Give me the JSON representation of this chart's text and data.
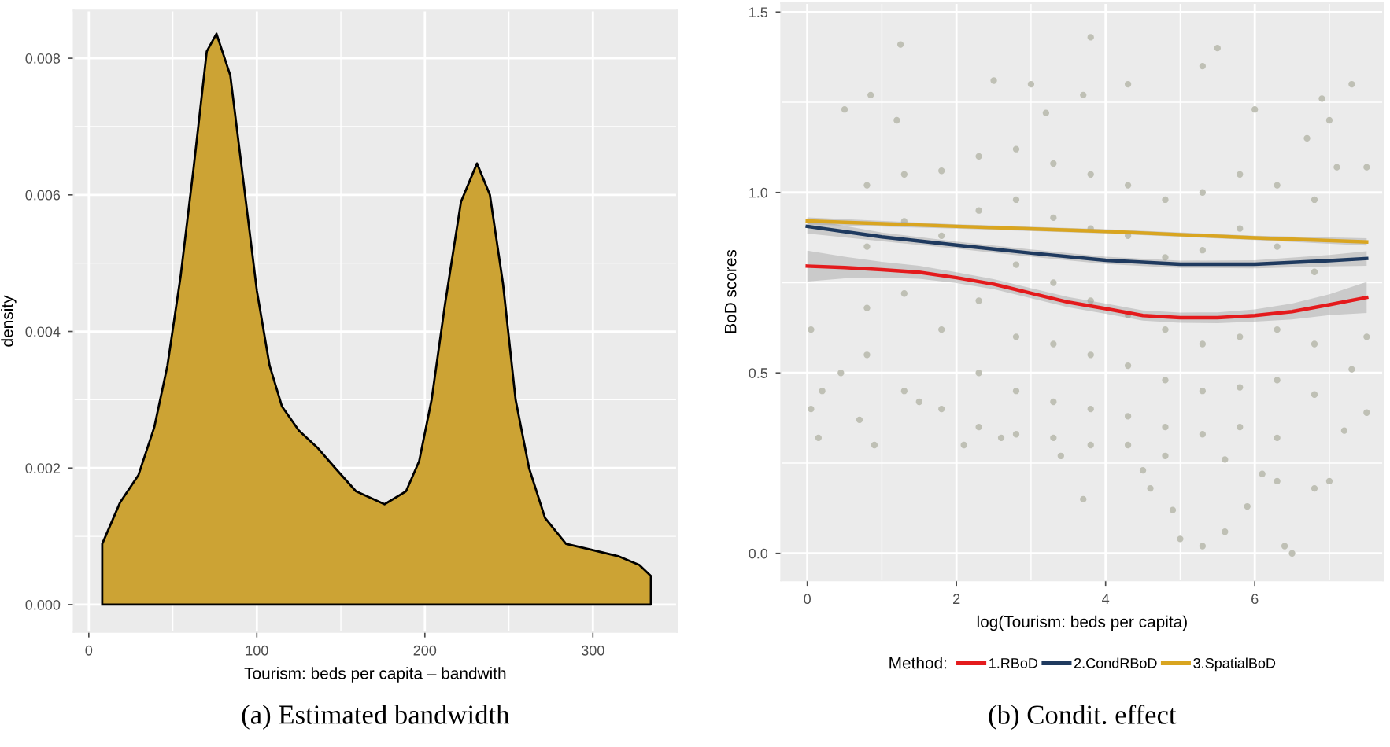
{
  "chart_data": [
    {
      "type": "area",
      "title": "(a) Estimated bandwidth",
      "xlabel": "Tourism: beds per capita – bandwith",
      "ylabel": "density",
      "xlim": [
        -9,
        350
      ],
      "ylim": [
        -0.0004,
        0.0087
      ],
      "xticks": [
        0,
        100,
        200,
        300
      ],
      "yticks": [
        {
          "value": 0,
          "label": "0.000"
        },
        {
          "value": 0.002,
          "label": "0.002"
        },
        {
          "value": 0.004,
          "label": "0.004"
        },
        {
          "value": 0.006,
          "label": "0.006"
        },
        {
          "value": 0.008,
          "label": "0.008"
        }
      ],
      "grid": true,
      "legend": false,
      "series": [
        {
          "color": "#cca334",
          "x": [
            8,
            18.7,
            29.6,
            39,
            46.8,
            54.6,
            62.4,
            70.2,
            76,
            84.2,
            92,
            100,
            107.6,
            115,
            125,
            136,
            146.6,
            159,
            176,
            188.8,
            196.6,
            204,
            212,
            221.5,
            231,
            238.7,
            246.5,
            254,
            262,
            271.5,
            284,
            299.5,
            315,
            327.6,
            334.5
          ],
          "values": [
            0.00089,
            0.0015,
            0.0019,
            0.0026,
            0.0035,
            0.0048,
            0.0064,
            0.0081,
            0.00836,
            0.00775,
            0.0062,
            0.0046,
            0.0035,
            0.0029,
            0.00255,
            0.0023,
            0.002,
            0.00166,
            0.00147,
            0.00166,
            0.0021,
            0.003,
            0.0044,
            0.0059,
            0.00646,
            0.006,
            0.0047,
            0.003,
            0.002,
            0.00127,
            0.00089,
            0.0008,
            0.00071,
            0.00058,
            0.00042
          ]
        }
      ]
    },
    {
      "type": "line",
      "title": "(b) Condit. effect",
      "xlabel": "log(Tourism: beds per capita)",
      "ylabel": "BoD scores",
      "legend_title": "Method:",
      "xlim": [
        -0.35,
        7.72
      ],
      "ylim": [
        -0.075,
        1.525
      ],
      "xticks": [
        0,
        2,
        4,
        6
      ],
      "yticks": [
        {
          "value": 0,
          "label": "0.0"
        },
        {
          "value": 0.5,
          "label": "0.5"
        },
        {
          "value": 1,
          "label": "1.0"
        },
        {
          "value": 1.5,
          "label": "1.5"
        }
      ],
      "grid": true,
      "legend": "bottom",
      "series": [
        {
          "type": "scatter",
          "color": "#bfc0b5",
          "x": [
            1.25,
            3.8,
            5.5,
            5.3,
            0.5,
            0.85,
            2.5,
            3.0,
            3.7,
            4.3,
            7.3,
            6.9,
            6.0,
            7.0,
            1.2,
            3.2,
            0.05,
            0.05,
            0.15,
            0.2,
            0.45,
            0.9,
            3.7,
            4.6,
            4.9,
            5.0,
            5.3,
            5.6,
            5.9,
            6.4,
            6.5,
            6.3,
            7.0,
            6.8,
            7.2,
            7.5,
            7.5,
            7.5,
            4.5,
            2.1,
            2.6,
            3.4,
            6.1,
            5.6,
            0.7,
            1.5,
            7.3,
            6.7,
            7.1,
            0.8,
            0.8,
            0.8,
            0.8,
            1.3,
            1.3,
            1.3,
            1.3,
            1.8,
            1.8,
            1.8,
            1.8,
            2.3,
            2.3,
            2.3,
            2.3,
            2.3,
            2.8,
            2.8,
            2.8,
            2.8,
            2.8,
            2.8,
            3.3,
            3.3,
            3.3,
            3.3,
            3.3,
            3.3,
            3.8,
            3.8,
            3.8,
            3.8,
            3.8,
            3.8,
            4.3,
            4.3,
            4.3,
            4.3,
            4.3,
            4.3,
            4.8,
            4.8,
            4.8,
            4.8,
            4.8,
            4.8,
            5.3,
            5.3,
            5.3,
            5.3,
            5.3,
            5.8,
            5.8,
            5.8,
            5.8,
            5.8,
            6.3,
            6.3,
            6.3,
            6.3,
            6.3,
            6.8,
            6.8,
            6.8,
            6.8
          ],
          "values": [
            1.41,
            1.43,
            1.4,
            1.35,
            1.23,
            1.27,
            1.31,
            1.3,
            1.27,
            1.3,
            1.3,
            1.26,
            1.23,
            1.2,
            1.2,
            1.22,
            0.62,
            0.4,
            0.32,
            0.45,
            0.5,
            0.3,
            0.15,
            0.18,
            0.12,
            0.04,
            0.02,
            0.06,
            0.13,
            0.02,
            0.0,
            0.2,
            0.2,
            0.18,
            0.34,
            0.39,
            0.6,
            1.07,
            0.23,
            0.3,
            0.32,
            0.27,
            0.22,
            0.26,
            0.37,
            0.42,
            0.51,
            1.15,
            1.07,
            1.02,
            0.85,
            0.68,
            0.55,
            1.05,
            0.92,
            0.72,
            0.45,
            1.06,
            0.88,
            0.62,
            0.4,
            1.1,
            0.95,
            0.7,
            0.5,
            0.35,
            1.12,
            0.98,
            0.8,
            0.6,
            0.45,
            0.33,
            1.08,
            0.93,
            0.75,
            0.58,
            0.42,
            0.32,
            1.05,
            0.9,
            0.7,
            0.55,
            0.4,
            0.3,
            1.02,
            0.88,
            0.66,
            0.52,
            0.38,
            0.3,
            0.98,
            0.82,
            0.62,
            0.48,
            0.35,
            0.27,
            1.0,
            0.84,
            0.58,
            0.45,
            0.33,
            1.05,
            0.9,
            0.6,
            0.46,
            0.35,
            1.02,
            0.85,
            0.62,
            0.48,
            0.32,
            0.98,
            0.78,
            0.58,
            0.44
          ]
        },
        {
          "name": "1.RBoD",
          "color": "#e41a1c",
          "x": [
            0,
            0.5,
            1,
            1.5,
            2,
            2.5,
            3,
            3.5,
            4,
            4.5,
            5,
            5.5,
            6,
            6.5,
            7,
            7.5
          ],
          "values": [
            0.796,
            0.792,
            0.786,
            0.779,
            0.764,
            0.746,
            0.721,
            0.696,
            0.678,
            0.659,
            0.653,
            0.653,
            0.659,
            0.67,
            0.689,
            0.709
          ],
          "lower": [
            0.753,
            0.762,
            0.764,
            0.761,
            0.749,
            0.732,
            0.707,
            0.682,
            0.664,
            0.645,
            0.639,
            0.638,
            0.642,
            0.648,
            0.66,
            0.666
          ],
          "upper": [
            0.839,
            0.822,
            0.808,
            0.797,
            0.779,
            0.76,
            0.735,
            0.71,
            0.692,
            0.673,
            0.667,
            0.668,
            0.676,
            0.692,
            0.718,
            0.752
          ]
        },
        {
          "name": "2.CondRBoD",
          "color": "#1f3a5f",
          "x": [
            0,
            1,
            2,
            3,
            4,
            5,
            6,
            7,
            7.5
          ],
          "values": [
            0.906,
            0.877,
            0.854,
            0.832,
            0.812,
            0.801,
            0.801,
            0.811,
            0.817
          ],
          "lower": [
            0.886,
            0.865,
            0.844,
            0.822,
            0.802,
            0.791,
            0.79,
            0.795,
            0.797
          ],
          "upper": [
            0.926,
            0.889,
            0.864,
            0.842,
            0.822,
            0.811,
            0.812,
            0.827,
            0.837
          ]
        },
        {
          "name": "3.SpatialBoD",
          "color": "#d9a520",
          "x": [
            0,
            2,
            4,
            6,
            7.5
          ],
          "values": [
            0.921,
            0.906,
            0.892,
            0.874,
            0.863
          ],
          "lower": [
            0.911,
            0.9,
            0.886,
            0.868,
            0.853
          ],
          "upper": [
            0.931,
            0.912,
            0.898,
            0.88,
            0.873
          ]
        }
      ]
    }
  ]
}
